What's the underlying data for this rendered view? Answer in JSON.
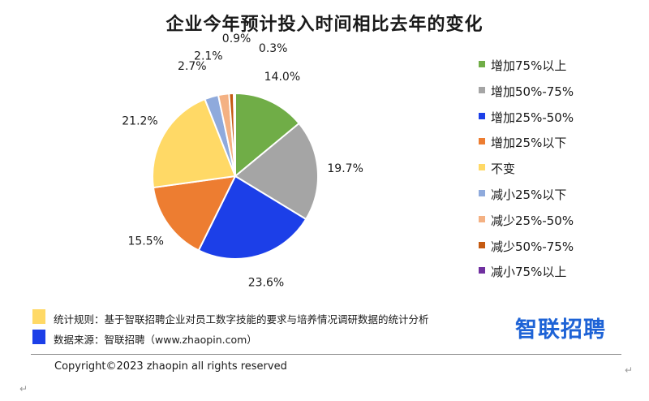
{
  "page": {
    "title": "企业今年预计投入时间相比去年的变化",
    "notes": [
      {
        "text": "统计规则：基于智联招聘企业对员工数字技能的要求与培养情况调研数据的统计分析",
        "color": "#ffd966"
      },
      {
        "text": "数据来源：智联招聘（www.zhaopin.com）",
        "color": "#1c3fe8"
      }
    ],
    "logo_text": "智联招聘",
    "copyright": "Copyright©2023 zhaopin all rights reserved",
    "return_mark": "↵"
  },
  "chart_data": {
    "type": "pie",
    "title": "企业今年预计投入时间相比去年的变化",
    "legend_position": "right",
    "slices": [
      {
        "label": "增加75%以上",
        "value": 14.0,
        "value_label": "14.0%",
        "color": "#70ad47"
      },
      {
        "label": "增加50%-75%",
        "value": 19.7,
        "value_label": "19.7%",
        "color": "#a5a5a5"
      },
      {
        "label": "增加25%-50%",
        "value": 23.6,
        "value_label": "23.6%",
        "color": "#1c3fe8"
      },
      {
        "label": "增加25%以下",
        "value": 15.5,
        "value_label": "15.5%",
        "color": "#ed7d31"
      },
      {
        "label": "不变",
        "value": 21.2,
        "value_label": "21.2%",
        "color": "#ffd966"
      },
      {
        "label": "减小25%以下",
        "value": 2.7,
        "value_label": "2.7%",
        "color": "#8faadc"
      },
      {
        "label": "减少25%-50%",
        "value": 2.1,
        "value_label": "2.1%",
        "color": "#f4b183"
      },
      {
        "label": "减少50%-75%",
        "value": 0.9,
        "value_label": "0.9%",
        "color": "#c55a11"
      },
      {
        "label": "减小75%以上",
        "value": 0.3,
        "value_label": "0.3%",
        "color": "#7030a0"
      }
    ]
  }
}
